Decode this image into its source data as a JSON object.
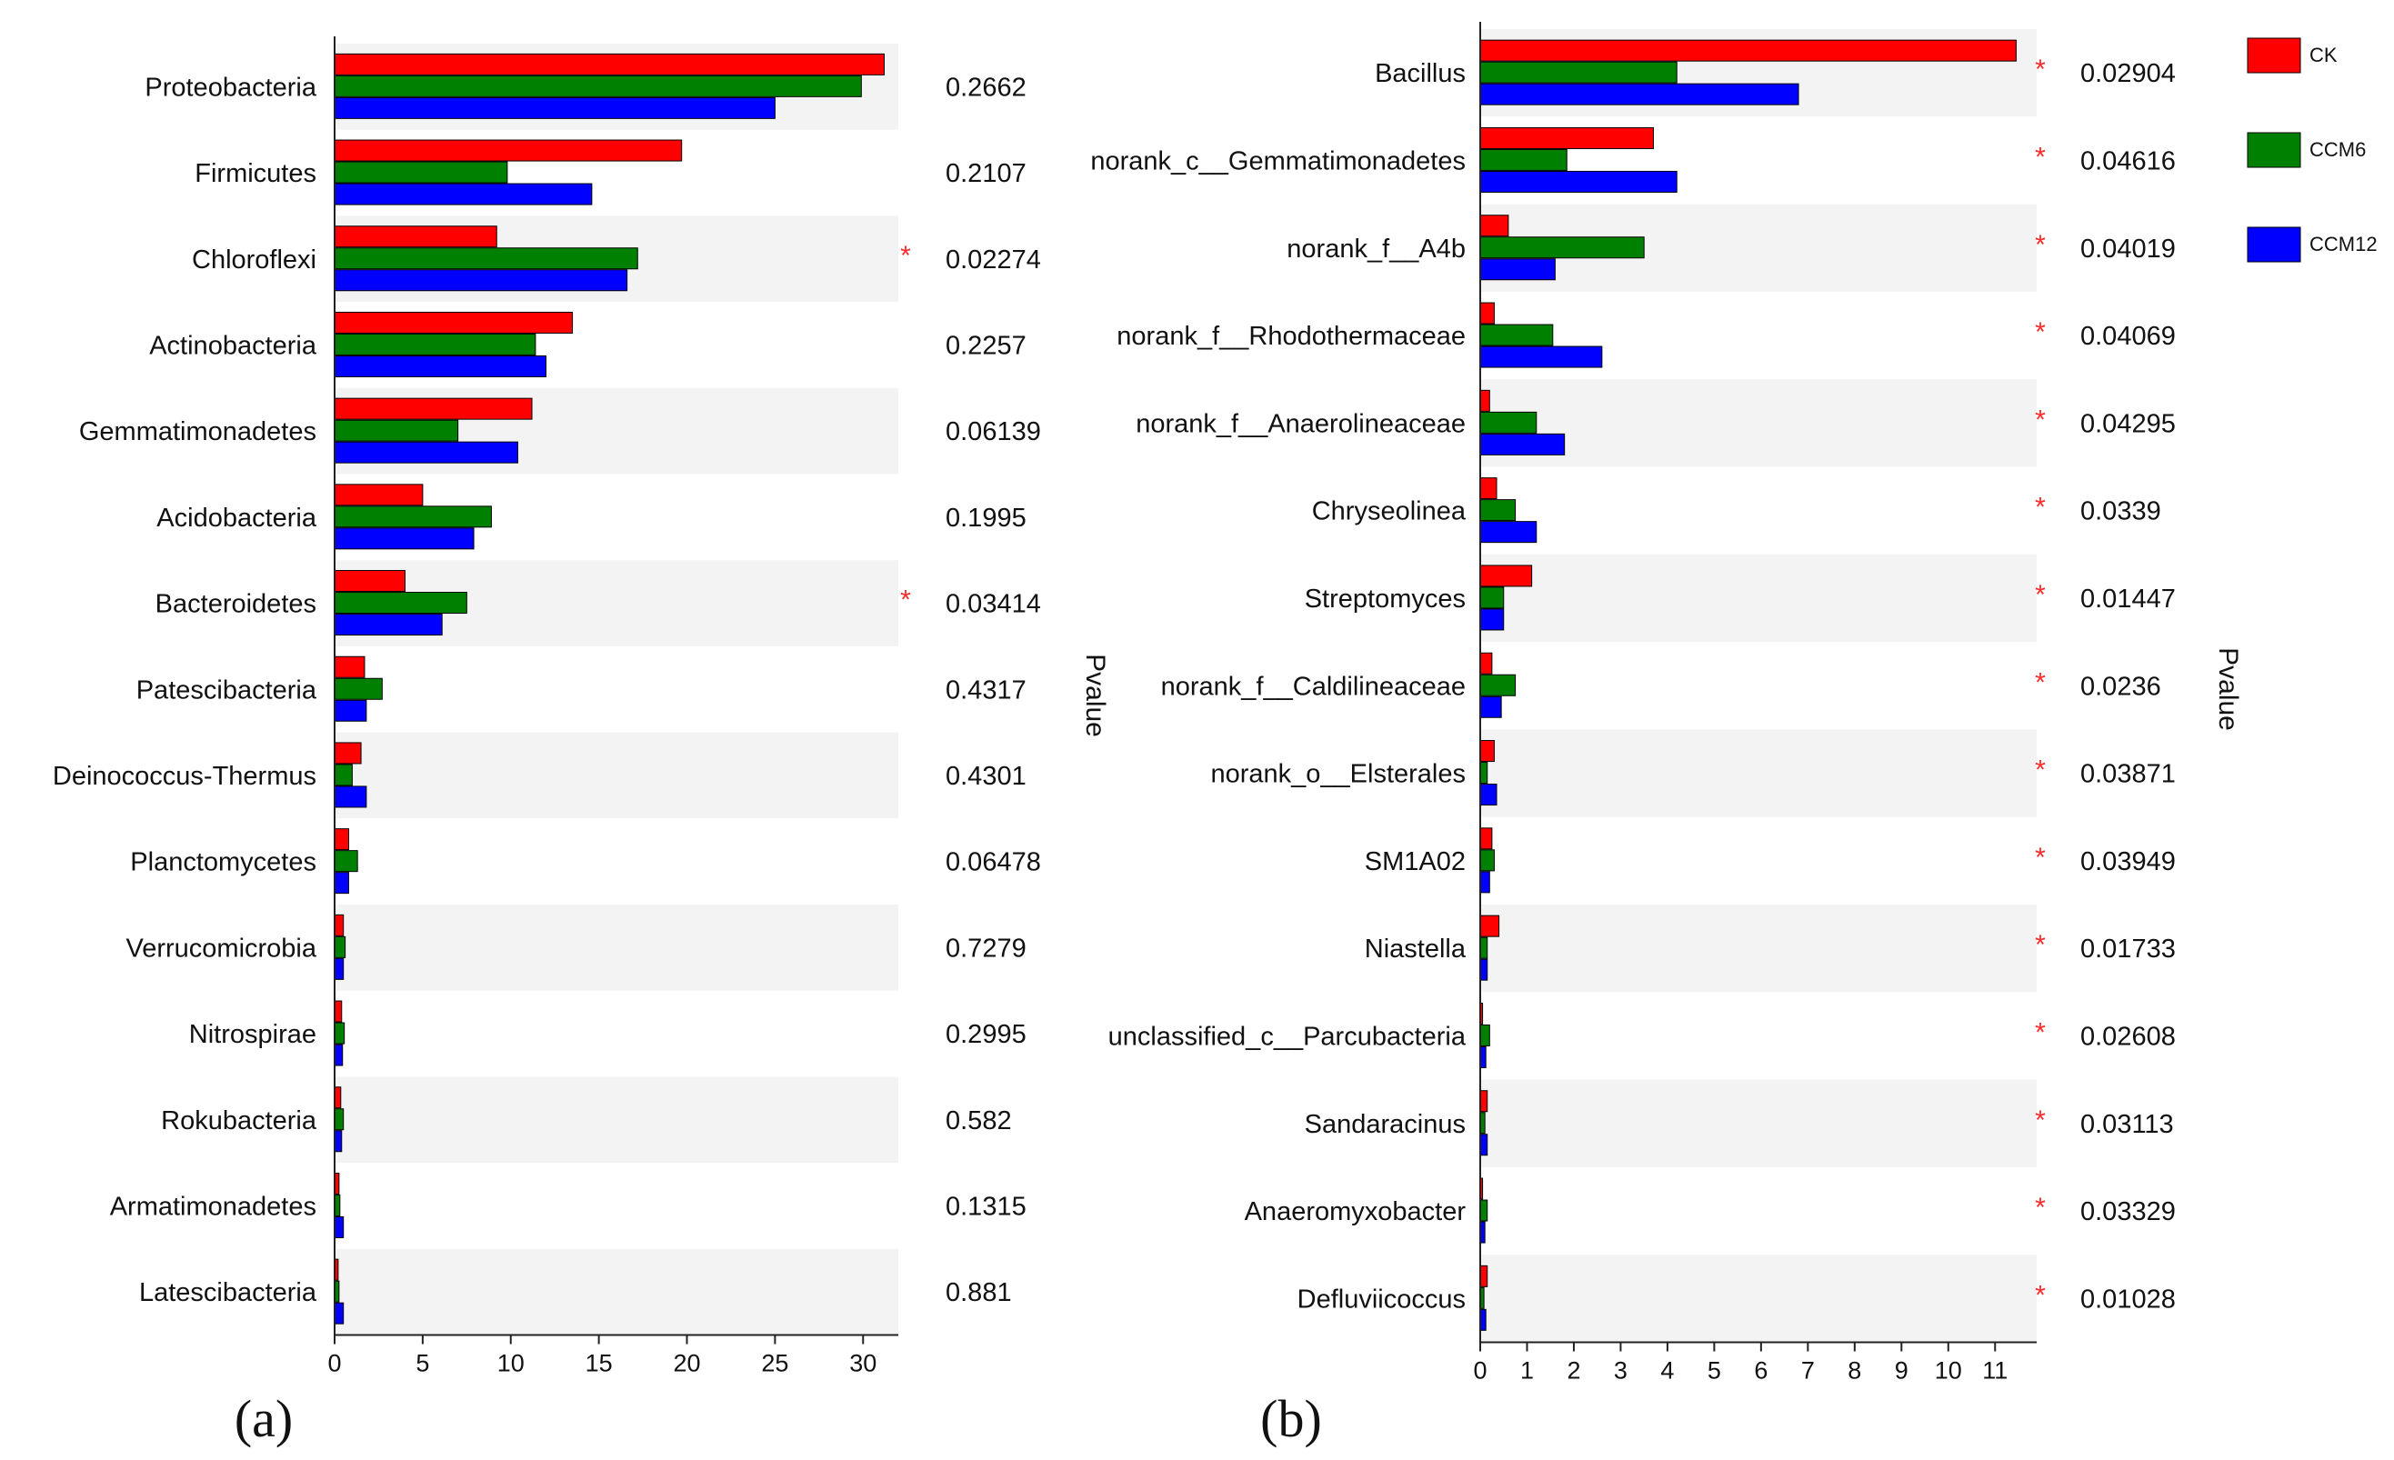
{
  "chart_data": [
    {
      "type": "bar",
      "panel_label": "(a)",
      "categories": [
        "Proteobacteria",
        "Firmicutes",
        "Chloroflexi",
        "Actinobacteria",
        "Gemmatimonadetes",
        "Acidobacteria",
        "Bacteroidetes",
        "Patescibacteria",
        "Deinococcus-Thermus",
        "Planctomycetes",
        "Verrucomicrobia",
        "Nitrospirae",
        "Rokubacteria",
        "Armatimonadetes",
        "Latescibacteria"
      ],
      "series": [
        {
          "name": "CK",
          "color": "#ff0000",
          "values": [
            31.2,
            19.7,
            9.2,
            13.5,
            11.2,
            5.0,
            4.0,
            1.7,
            1.5,
            0.8,
            0.5,
            0.4,
            0.35,
            0.25,
            0.2
          ]
        },
        {
          "name": "CCM6",
          "color": "#008000",
          "values": [
            29.9,
            9.8,
            17.2,
            11.4,
            7.0,
            8.9,
            7.5,
            2.7,
            1.0,
            1.3,
            0.6,
            0.55,
            0.5,
            0.3,
            0.25
          ]
        },
        {
          "name": "CCM12",
          "color": "#0000ff",
          "values": [
            25.0,
            14.6,
            16.6,
            12.0,
            10.4,
            7.9,
            6.1,
            1.8,
            1.8,
            0.8,
            0.5,
            0.45,
            0.4,
            0.5,
            0.5
          ]
        }
      ],
      "pvalues": [
        "0.2662",
        "0.2107",
        "0.02274",
        "0.2257",
        "0.06139",
        "0.1995",
        "0.03414",
        "0.4317",
        "0.4301",
        "0.06478",
        "0.7279",
        "0.2995",
        "0.582",
        "0.1315",
        "0.881"
      ],
      "significant": [
        false,
        false,
        true,
        false,
        false,
        false,
        true,
        false,
        false,
        false,
        false,
        false,
        false,
        false,
        false
      ],
      "star_symbol": "*",
      "xlim": [
        0,
        32
      ],
      "xticks": [
        "0",
        "5",
        "10",
        "15",
        "20",
        "25",
        "30"
      ],
      "xtick_values": [
        0,
        5,
        10,
        15,
        20,
        25,
        30
      ],
      "pvalue_label": "Pvalue"
    },
    {
      "type": "bar",
      "panel_label": "(b)",
      "categories": [
        "Bacillus",
        "norank_c__Gemmatimonadetes",
        "norank_f__A4b",
        "norank_f__Rhodothermaceae",
        "norank_f__Anaerolineaceae",
        "Chryseolinea",
        "Streptomyces",
        "norank_f__Caldilineaceae",
        "norank_o__Elsterales",
        "SM1A02",
        "Niastella",
        "unclassified_c__Parcubacteria",
        "Sandaracinus",
        "Anaeromyxobacter",
        "Defluviicoccus"
      ],
      "series": [
        {
          "name": "CK",
          "color": "#ff0000",
          "values": [
            11.45,
            3.7,
            0.6,
            0.3,
            0.2,
            0.35,
            1.1,
            0.25,
            0.3,
            0.25,
            0.4,
            0.05,
            0.15,
            0.05,
            0.15
          ]
        },
        {
          "name": "CCM6",
          "color": "#008000",
          "values": [
            4.2,
            1.85,
            3.5,
            1.55,
            1.2,
            0.75,
            0.5,
            0.75,
            0.15,
            0.3,
            0.15,
            0.2,
            0.1,
            0.15,
            0.08
          ]
        },
        {
          "name": "CCM12",
          "color": "#0000ff",
          "values": [
            6.8,
            4.2,
            1.6,
            2.6,
            1.8,
            1.2,
            0.5,
            0.45,
            0.35,
            0.2,
            0.15,
            0.12,
            0.15,
            0.1,
            0.12
          ]
        }
      ],
      "pvalues": [
        "0.02904",
        "0.04616",
        "0.04019",
        "0.04069",
        "0.04295",
        "0.0339",
        "0.01447",
        "0.0236",
        "0.03871",
        "0.03949",
        "0.01733",
        "0.02608",
        "0.03113",
        "0.03329",
        "0.01028"
      ],
      "significant": [
        true,
        true,
        true,
        true,
        true,
        true,
        true,
        true,
        true,
        true,
        true,
        true,
        true,
        true,
        true
      ],
      "star_symbol": "*",
      "xlim": [
        0,
        11.5
      ],
      "xticks": [
        "0",
        "1",
        "2",
        "3",
        "4",
        "5",
        "6",
        "7",
        "8",
        "9",
        "10",
        "11"
      ],
      "xtick_values": [
        0,
        1,
        2,
        3,
        4,
        5,
        6,
        7,
        8,
        9,
        10,
        11
      ],
      "pvalue_label": "Pvalue"
    }
  ],
  "legend": [
    {
      "name": "CK",
      "color": "#ff0000"
    },
    {
      "name": "CCM6",
      "color": "#008000"
    },
    {
      "name": "CCM12",
      "color": "#0000ff"
    }
  ],
  "colors": {
    "row_shade": "#f3f3f3",
    "star": "#ff2a2a",
    "axis": "#222222"
  }
}
